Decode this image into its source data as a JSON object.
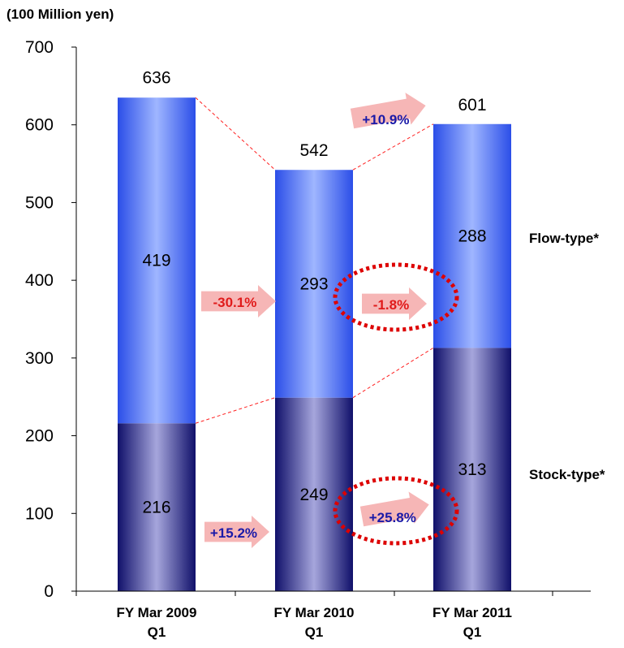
{
  "chart_data": {
    "type": "bar",
    "stacked": true,
    "unit_label": "(100 Million yen)",
    "categories": [
      [
        "FY Mar 2009",
        "Q1"
      ],
      [
        "FY Mar 2010",
        "Q1"
      ],
      [
        "FY Mar 2011",
        "Q1"
      ]
    ],
    "series": [
      {
        "name": "Stock-type*",
        "values": [
          216,
          249,
          313
        ],
        "color": "#2e2e8a"
      },
      {
        "name": "Flow-type*",
        "values": [
          419,
          293,
          288
        ],
        "color": "#4a6cf0"
      }
    ],
    "totals": [
      636,
      542,
      601
    ],
    "ylim": [
      0,
      700
    ],
    "yticks": [
      0,
      100,
      200,
      300,
      400,
      500,
      600,
      700
    ],
    "grid": false,
    "annotations": {
      "total_change": {
        "from": 1,
        "to": 2,
        "text": "+10.9%",
        "color": "#1a1aa8"
      },
      "flow_changes": [
        {
          "from": 0,
          "to": 1,
          "text": "-30.1%",
          "color": "#e01b1b",
          "circled": false
        },
        {
          "from": 1,
          "to": 2,
          "text": "-1.8%",
          "color": "#e01b1b",
          "circled": true
        }
      ],
      "stock_changes": [
        {
          "from": 0,
          "to": 1,
          "text": "+15.2%",
          "color": "#1a1aa8",
          "circled": false
        },
        {
          "from": 1,
          "to": 2,
          "text": "+25.8%",
          "color": "#1a1aa8",
          "circled": true
        }
      ]
    },
    "accent_colors": {
      "arrow": "#f6b6b6",
      "circle": "#dd0000",
      "connector": "#ff2020"
    }
  }
}
